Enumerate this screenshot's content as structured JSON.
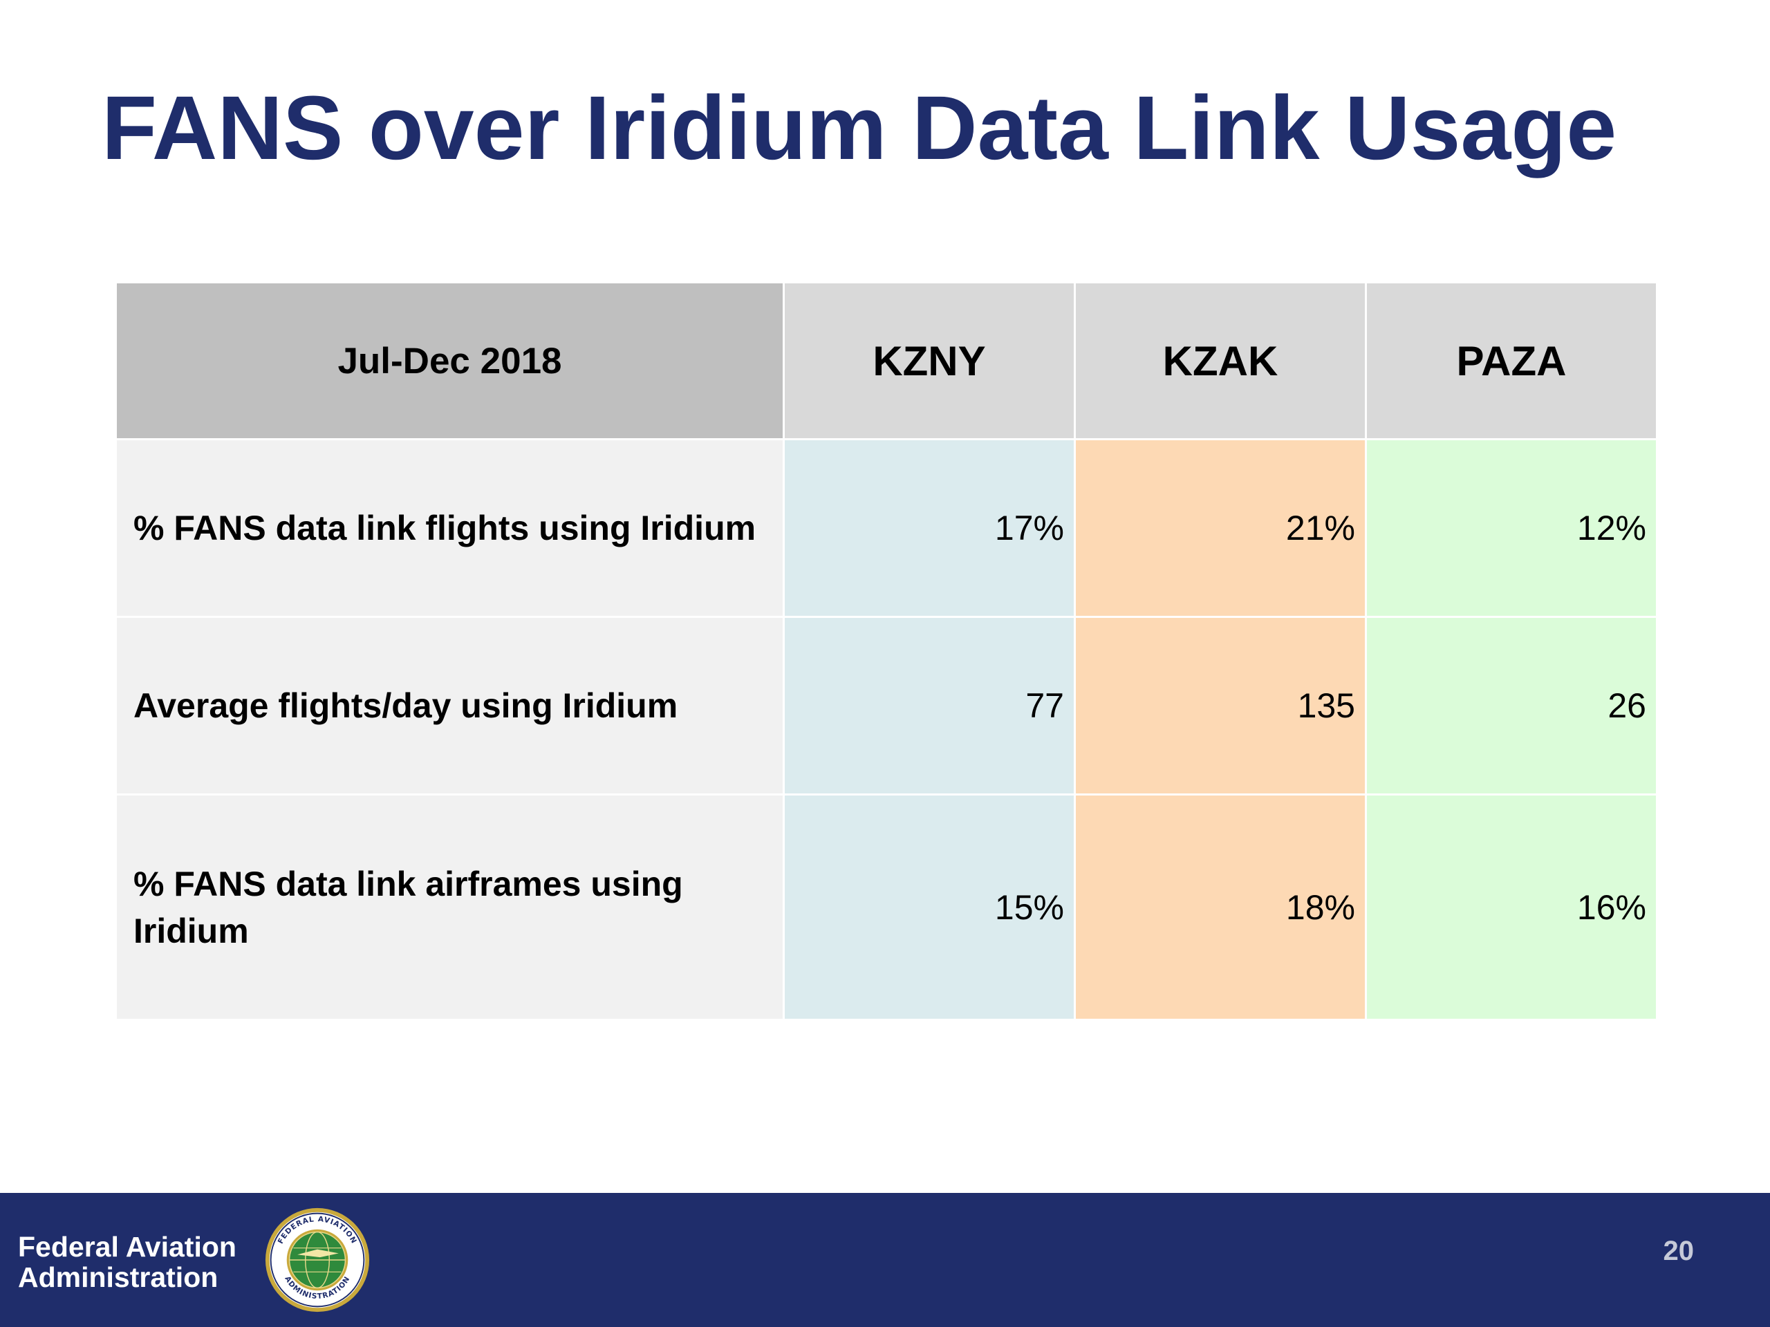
{
  "slide": {
    "title": "FANS over Iridium Data Link Usage"
  },
  "table": {
    "period_header": "Jul-Dec 2018",
    "columns": [
      "KZNY",
      "KZAK",
      "PAZA"
    ],
    "rows": [
      {
        "label": "% FANS data link flights using Iridium",
        "values": [
          "17%",
          "21%",
          "12%"
        ]
      },
      {
        "label": "Average flights/day using Iridium",
        "values": [
          "77",
          "135",
          "26"
        ]
      },
      {
        "label": "% FANS data link airframes using Iridium",
        "values": [
          "15%",
          "18%",
          "16%"
        ]
      }
    ],
    "column_colors": {
      "KZNY": "#dbebee",
      "KZAK": "#fdd9b4",
      "PAZA": "#dbfcd9"
    }
  },
  "footer": {
    "agency_line1": "Federal Aviation",
    "agency_line2": "Administration",
    "seal_text_top": "FEDERAL AVIATION",
    "seal_text_bottom": "ADMINISTRATION",
    "page_number": "20"
  },
  "colors": {
    "title": "#1f2d6b",
    "footer_bg": "#1f2d6b",
    "header_corner_bg": "#bfbfbf",
    "header_bg": "#d9d9d9",
    "label_bg": "#f1f1f1"
  },
  "icons": [
    "faa-seal-icon"
  ]
}
